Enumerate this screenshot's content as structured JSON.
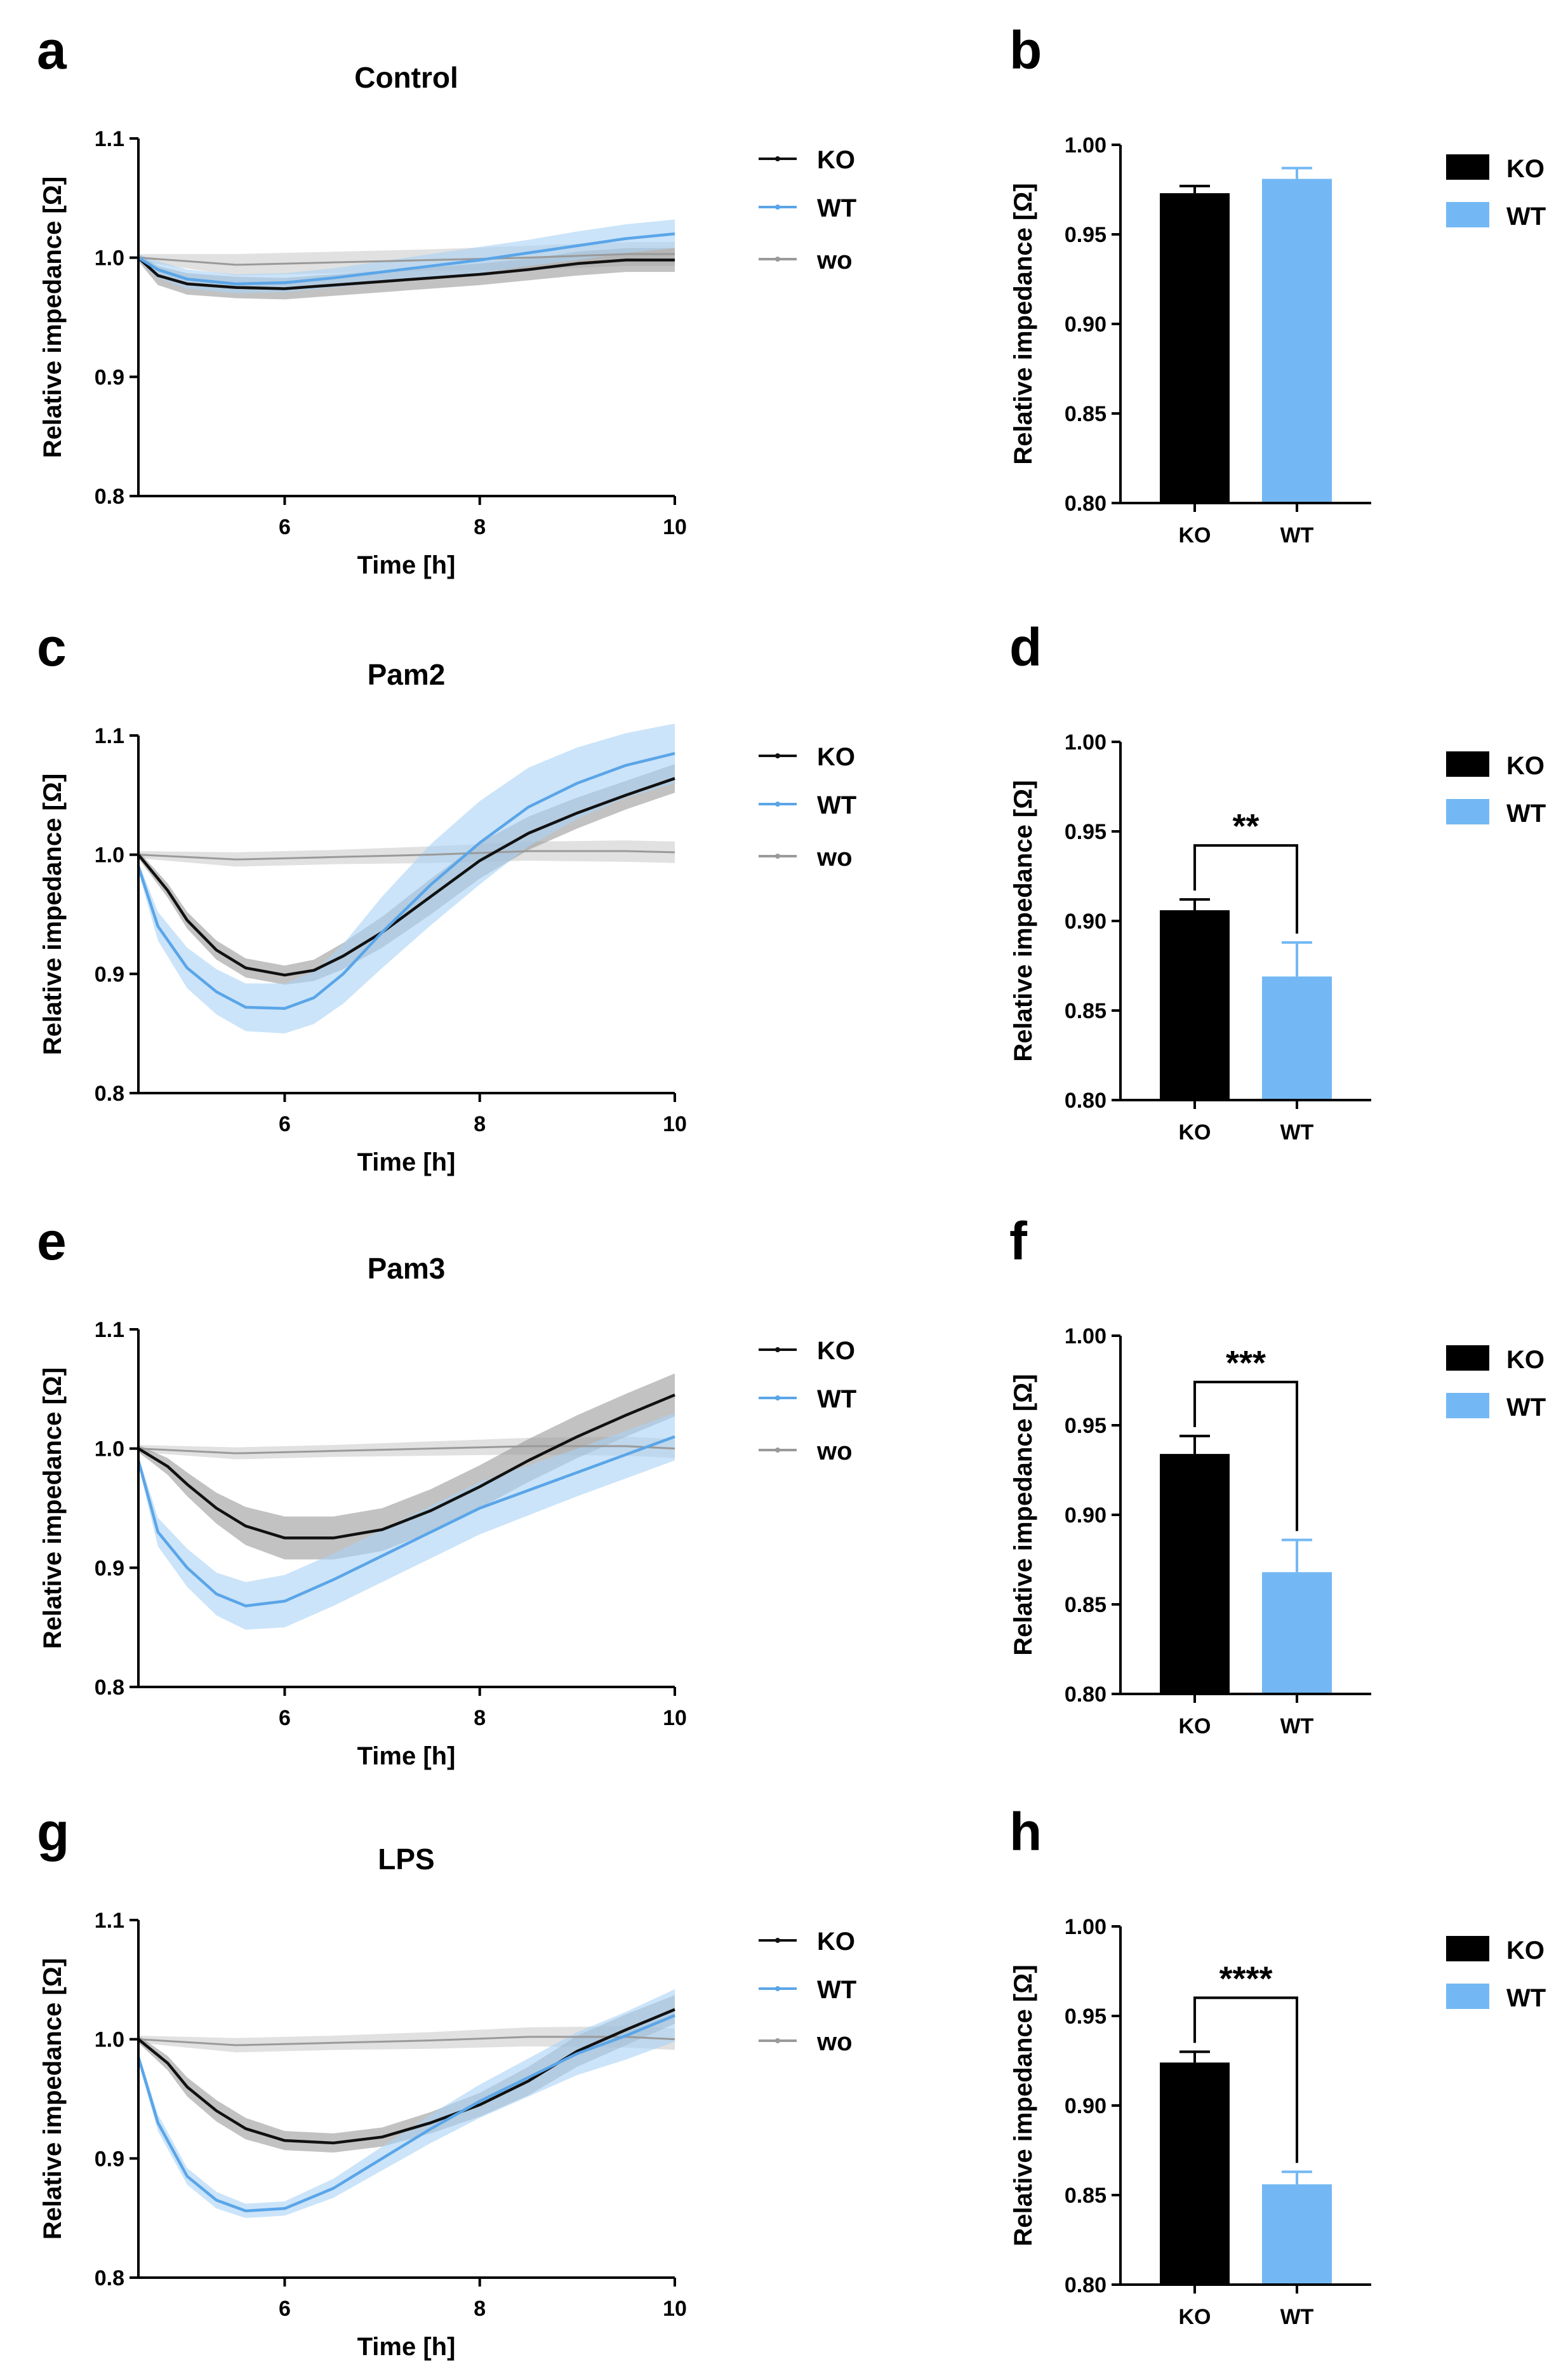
{
  "chart_data": [
    {
      "panel": "a",
      "type": "line",
      "title": "Control",
      "xlabel": "Time [h]",
      "ylabel": "Relative impedance [Ω]",
      "xlim": [
        4.5,
        10
      ],
      "ylim": [
        0.8,
        1.1
      ],
      "xticks": [
        "6",
        "8",
        "10"
      ],
      "yticks": [
        "0.8",
        "0.9",
        "1.0",
        "1.1"
      ],
      "legend": [
        "KO",
        "WT",
        "wo"
      ],
      "series": [
        {
          "name": "KO",
          "color": "#111111",
          "band": "#9a9a9a",
          "x": [
            4.5,
            4.7,
            5.0,
            5.5,
            6.0,
            6.5,
            7.0,
            7.5,
            8.0,
            8.5,
            9.0,
            9.5,
            10.0
          ],
          "y": [
            1.0,
            0.985,
            0.978,
            0.975,
            0.974,
            0.977,
            0.98,
            0.983,
            0.986,
            0.99,
            0.995,
            0.998,
            0.998
          ],
          "err": [
            0.003,
            0.008,
            0.009,
            0.009,
            0.009,
            0.009,
            0.009,
            0.009,
            0.009,
            0.009,
            0.01,
            0.01,
            0.01
          ]
        },
        {
          "name": "WT",
          "color": "#5aa5e8",
          "band": "#a9d2f5",
          "x": [
            4.5,
            4.7,
            5.0,
            5.5,
            6.0,
            6.5,
            7.0,
            7.5,
            8.0,
            8.5,
            9.0,
            9.5,
            10.0
          ],
          "y": [
            1.0,
            0.99,
            0.982,
            0.978,
            0.979,
            0.983,
            0.988,
            0.993,
            0.998,
            1.004,
            1.01,
            1.016,
            1.02
          ],
          "err": [
            0.003,
            0.007,
            0.008,
            0.008,
            0.008,
            0.008,
            0.009,
            0.01,
            0.011,
            0.011,
            0.012,
            0.012,
            0.012
          ]
        },
        {
          "name": "wo",
          "color": "#9a9a9a",
          "band": "#dcdcdc",
          "x": [
            4.5,
            5.5,
            6.5,
            7.5,
            8.5,
            9.5,
            10.0
          ],
          "y": [
            1.0,
            0.994,
            0.996,
            0.998,
            1.0,
            1.003,
            1.003
          ],
          "err": [
            0.003,
            0.009,
            0.009,
            0.009,
            0.01,
            0.01,
            0.01
          ]
        }
      ]
    },
    {
      "panel": "b",
      "type": "bar",
      "title": "",
      "xlabel": "",
      "ylabel": "Relative impedance [Ω]",
      "ylim": [
        0.8,
        1.0
      ],
      "yticks": [
        "0.80",
        "0.85",
        "0.90",
        "0.95",
        "1.00"
      ],
      "categories": [
        "KO",
        "WT"
      ],
      "values": [
        0.973,
        0.981
      ],
      "errors": [
        0.004,
        0.006
      ],
      "colors": [
        "#000000",
        "#73b8f4"
      ],
      "legend": [
        "KO",
        "WT"
      ],
      "significance": ""
    },
    {
      "panel": "c",
      "type": "line",
      "title": "Pam2",
      "xlabel": "Time [h]",
      "ylabel": "Relative impedance [Ω]",
      "xlim": [
        4.5,
        10
      ],
      "ylim": [
        0.8,
        1.1
      ],
      "xticks": [
        "6",
        "8",
        "10"
      ],
      "yticks": [
        "0.8",
        "0.9",
        "1.0",
        "1.1"
      ],
      "legend": [
        "KO",
        "WT",
        "wo"
      ],
      "series": [
        {
          "name": "KO",
          "color": "#111111",
          "band": "#9a9a9a",
          "x": [
            4.5,
            4.8,
            5.0,
            5.3,
            5.6,
            6.0,
            6.3,
            6.6,
            7.0,
            7.5,
            8.0,
            8.5,
            9.0,
            9.5,
            10.0
          ],
          "y": [
            1.0,
            0.97,
            0.945,
            0.92,
            0.905,
            0.899,
            0.903,
            0.915,
            0.935,
            0.965,
            0.995,
            1.018,
            1.035,
            1.05,
            1.064
          ],
          "err": [
            0.003,
            0.006,
            0.007,
            0.008,
            0.008,
            0.008,
            0.009,
            0.011,
            0.013,
            0.015,
            0.015,
            0.014,
            0.013,
            0.012,
            0.012
          ]
        },
        {
          "name": "WT",
          "color": "#5aa5e8",
          "band": "#a9d2f5",
          "x": [
            4.5,
            4.7,
            5.0,
            5.3,
            5.6,
            6.0,
            6.3,
            6.6,
            7.0,
            7.5,
            8.0,
            8.5,
            9.0,
            9.5,
            10.0
          ],
          "y": [
            0.99,
            0.94,
            0.905,
            0.885,
            0.872,
            0.871,
            0.88,
            0.9,
            0.935,
            0.975,
            1.01,
            1.04,
            1.06,
            1.075,
            1.085
          ],
          "err": [
            0.004,
            0.012,
            0.017,
            0.019,
            0.02,
            0.021,
            0.022,
            0.025,
            0.03,
            0.034,
            0.035,
            0.033,
            0.03,
            0.027,
            0.025
          ]
        },
        {
          "name": "wo",
          "color": "#9a9a9a",
          "band": "#dcdcdc",
          "x": [
            4.5,
            5.5,
            6.5,
            7.5,
            8.5,
            9.5,
            10.0
          ],
          "y": [
            1.0,
            0.996,
            0.998,
            1.0,
            1.003,
            1.003,
            1.002
          ],
          "err": [
            0.003,
            0.006,
            0.006,
            0.007,
            0.008,
            0.009,
            0.009
          ]
        }
      ]
    },
    {
      "panel": "d",
      "type": "bar",
      "title": "",
      "xlabel": "",
      "ylabel": "Relative impedance [Ω]",
      "ylim": [
        0.8,
        1.0
      ],
      "yticks": [
        "0.80",
        "0.85",
        "0.90",
        "0.95",
        "1.00"
      ],
      "categories": [
        "KO",
        "WT"
      ],
      "values": [
        0.906,
        0.869
      ],
      "errors": [
        0.006,
        0.019
      ],
      "colors": [
        "#000000",
        "#73b8f4"
      ],
      "legend": [
        "KO",
        "WT"
      ],
      "significance": "**"
    },
    {
      "panel": "e",
      "type": "line",
      "title": "Pam3",
      "xlabel": "Time [h]",
      "ylabel": "Relative impedance [Ω]",
      "xlim": [
        4.5,
        10
      ],
      "ylim": [
        0.8,
        1.1
      ],
      "xticks": [
        "6",
        "8",
        "10"
      ],
      "yticks": [
        "0.8",
        "0.9",
        "1.0",
        "1.1"
      ],
      "legend": [
        "KO",
        "WT",
        "wo"
      ],
      "series": [
        {
          "name": "KO",
          "color": "#111111",
          "band": "#9a9a9a",
          "x": [
            4.5,
            4.8,
            5.0,
            5.3,
            5.6,
            6.0,
            6.5,
            7.0,
            7.5,
            8.0,
            8.5,
            9.0,
            9.5,
            10.0
          ],
          "y": [
            1.0,
            0.985,
            0.97,
            0.95,
            0.935,
            0.925,
            0.925,
            0.932,
            0.948,
            0.968,
            0.99,
            1.01,
            1.028,
            1.045
          ],
          "err": [
            0.003,
            0.007,
            0.01,
            0.013,
            0.016,
            0.018,
            0.018,
            0.018,
            0.018,
            0.018,
            0.018,
            0.018,
            0.018,
            0.018
          ]
        },
        {
          "name": "WT",
          "color": "#5aa5e8",
          "band": "#a9d2f5",
          "x": [
            4.5,
            4.7,
            5.0,
            5.3,
            5.6,
            6.0,
            6.5,
            7.0,
            7.5,
            8.0,
            8.5,
            9.0,
            9.5,
            10.0
          ],
          "y": [
            0.99,
            0.93,
            0.9,
            0.878,
            0.868,
            0.872,
            0.89,
            0.91,
            0.93,
            0.95,
            0.965,
            0.98,
            0.995,
            1.01
          ],
          "err": [
            0.004,
            0.012,
            0.016,
            0.018,
            0.02,
            0.022,
            0.022,
            0.022,
            0.022,
            0.022,
            0.021,
            0.02,
            0.02,
            0.02
          ]
        },
        {
          "name": "wo",
          "color": "#9a9a9a",
          "band": "#dcdcdc",
          "x": [
            4.5,
            5.5,
            6.5,
            7.5,
            8.5,
            9.5,
            10.0
          ],
          "y": [
            1.0,
            0.996,
            0.998,
            1.0,
            1.002,
            1.002,
            1.0
          ],
          "err": [
            0.003,
            0.005,
            0.005,
            0.006,
            0.007,
            0.008,
            0.008
          ]
        }
      ]
    },
    {
      "panel": "f",
      "type": "bar",
      "title": "",
      "xlabel": "",
      "ylabel": "Relative impedance [Ω]",
      "ylim": [
        0.8,
        1.0
      ],
      "yticks": [
        "0.80",
        "0.85",
        "0.90",
        "0.95",
        "1.00"
      ],
      "categories": [
        "KO",
        "WT"
      ],
      "values": [
        0.934,
        0.868
      ],
      "errors": [
        0.01,
        0.018
      ],
      "colors": [
        "#000000",
        "#73b8f4"
      ],
      "legend": [
        "KO",
        "WT"
      ],
      "significance": "***"
    },
    {
      "panel": "g",
      "type": "line",
      "title": "LPS",
      "xlabel": "Time [h]",
      "ylabel": "Relative impedance [Ω]",
      "xlim": [
        4.5,
        10
      ],
      "ylim": [
        0.8,
        1.1
      ],
      "xticks": [
        "6",
        "8",
        "10"
      ],
      "yticks": [
        "0.8",
        "0.9",
        "1.0",
        "1.1"
      ],
      "legend": [
        "KO",
        "WT",
        "wo"
      ],
      "series": [
        {
          "name": "KO",
          "color": "#111111",
          "band": "#9a9a9a",
          "x": [
            4.5,
            4.8,
            5.0,
            5.3,
            5.6,
            6.0,
            6.5,
            7.0,
            7.5,
            8.0,
            8.5,
            9.0,
            9.5,
            10.0
          ],
          "y": [
            1.0,
            0.98,
            0.96,
            0.94,
            0.925,
            0.915,
            0.913,
            0.918,
            0.93,
            0.945,
            0.965,
            0.99,
            1.008,
            1.025
          ],
          "err": [
            0.003,
            0.006,
            0.008,
            0.009,
            0.009,
            0.008,
            0.008,
            0.008,
            0.009,
            0.01,
            0.012,
            0.013,
            0.013,
            0.012
          ]
        },
        {
          "name": "WT",
          "color": "#5aa5e8",
          "band": "#a9d2f5",
          "x": [
            4.5,
            4.7,
            5.0,
            5.3,
            5.6,
            6.0,
            6.5,
            7.0,
            7.5,
            8.0,
            8.5,
            9.0,
            9.5,
            10.0
          ],
          "y": [
            0.985,
            0.93,
            0.885,
            0.865,
            0.856,
            0.858,
            0.875,
            0.9,
            0.925,
            0.948,
            0.968,
            0.988,
            1.003,
            1.02
          ],
          "err": [
            0.004,
            0.007,
            0.007,
            0.007,
            0.006,
            0.006,
            0.008,
            0.01,
            0.012,
            0.014,
            0.016,
            0.018,
            0.02,
            0.022
          ]
        },
        {
          "name": "wo",
          "color": "#9a9a9a",
          "band": "#dcdcdc",
          "x": [
            4.5,
            5.5,
            6.5,
            7.5,
            8.5,
            9.5,
            10.0
          ],
          "y": [
            1.0,
            0.995,
            0.997,
            0.999,
            1.002,
            1.002,
            1.0
          ],
          "err": [
            0.003,
            0.006,
            0.006,
            0.007,
            0.008,
            0.009,
            0.009
          ]
        }
      ]
    },
    {
      "panel": "h",
      "type": "bar",
      "title": "",
      "xlabel": "",
      "ylabel": "Relative impedance [Ω]",
      "ylim": [
        0.8,
        1.0
      ],
      "yticks": [
        "0.80",
        "0.85",
        "0.90",
        "0.95",
        "1.00"
      ],
      "categories": [
        "KO",
        "WT"
      ],
      "values": [
        0.924,
        0.856
      ],
      "errors": [
        0.006,
        0.007
      ],
      "colors": [
        "#000000",
        "#73b8f4"
      ],
      "legend": [
        "KO",
        "WT"
      ],
      "significance": "****"
    }
  ]
}
